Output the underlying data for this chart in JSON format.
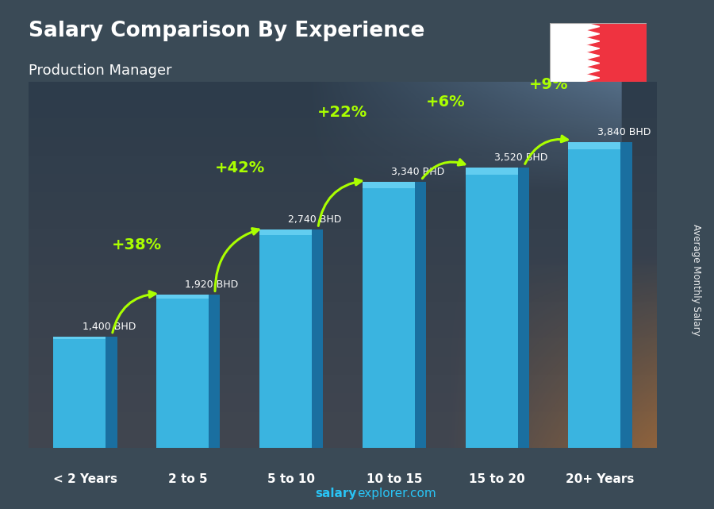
{
  "title": "Salary Comparison By Experience",
  "subtitle": "Production Manager",
  "categories": [
    "< 2 Years",
    "2 to 5",
    "5 to 10",
    "10 to 15",
    "15 to 20",
    "20+ Years"
  ],
  "values": [
    1400,
    1920,
    2740,
    3340,
    3520,
    3840
  ],
  "value_labels": [
    "1,400 BHD",
    "1,920 BHD",
    "2,740 BHD",
    "3,340 BHD",
    "3,520 BHD",
    "3,840 BHD"
  ],
  "pct_labels": [
    "+38%",
    "+42%",
    "+22%",
    "+6%",
    "+9%"
  ],
  "bar_color": "#3ab4e0",
  "bar_dark": "#2070a0",
  "bar_side": "#1a5a80",
  "pct_color": "#aaff00",
  "arrow_color": "#aaff00",
  "title_color": "#ffffff",
  "subtitle_color": "#ffffff",
  "value_label_color": "#ffffff",
  "ylabel": "Average Monthly Salary",
  "footer_salary": "salary",
  "footer_rest": "explorer.com",
  "footer_color": "#29c4f5",
  "ylim": [
    0,
    4600
  ],
  "bg_top": "#3a4f5c",
  "bg_bottom": "#2a3a48"
}
